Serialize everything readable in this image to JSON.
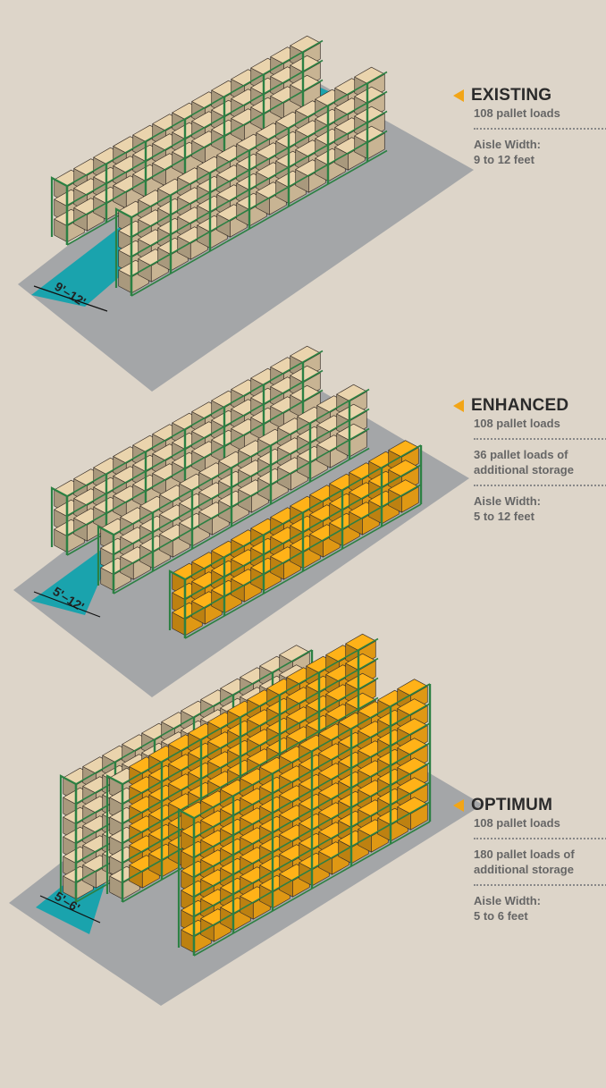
{
  "colors": {
    "background": "#ddd5c9",
    "floor": "#a4a6a8",
    "aisle": "#1aa3ad",
    "rack": "#2c8043",
    "box_existing": "#d9c4a0",
    "box_added": "#f2a516",
    "title_arrow": "#f2a516"
  },
  "sections": [
    {
      "title": "EXISTING",
      "lines": [
        "108 pallet loads"
      ],
      "aisle_lines": [
        "Aisle Width:",
        "9 to 12 feet"
      ],
      "aisle_marker": "9'–12'"
    },
    {
      "title": "ENHANCED",
      "lines": [
        "108 pallet loads"
      ],
      "extra_lines": [
        "36 pallet loads of",
        "additional storage"
      ],
      "aisle_lines": [
        "Aisle Width:",
        "5 to 12 feet"
      ],
      "aisle_marker": "5'–12'"
    },
    {
      "title": "OPTIMUM",
      "lines": [
        "108 pallet loads"
      ],
      "extra_lines": [
        "180 pallet loads of",
        "additional storage"
      ],
      "aisle_lines": [
        "Aisle Width:",
        "5 to 6 feet"
      ],
      "aisle_marker": "5'–6'"
    }
  ]
}
